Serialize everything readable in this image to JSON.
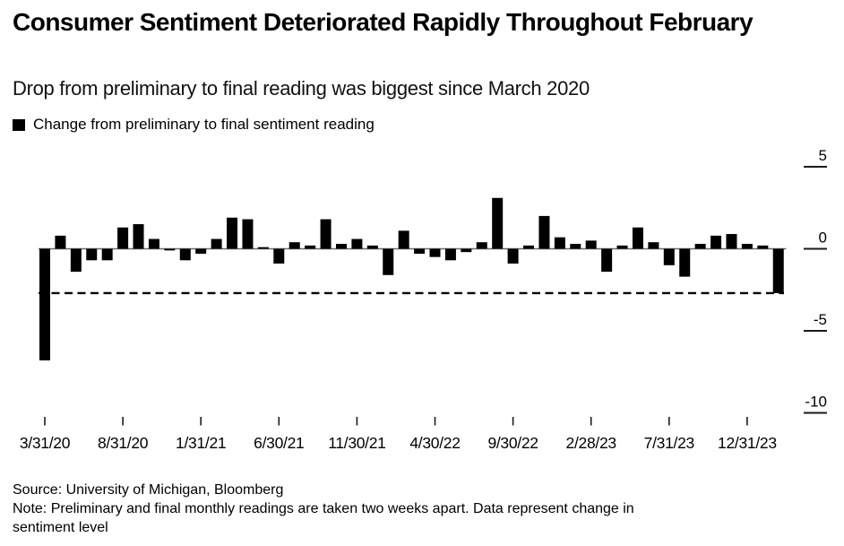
{
  "header": {
    "title": "Consumer Sentiment Deteriorated Rapidly Throughout February",
    "subtitle": "Drop from preliminary to final reading was biggest since March 2020"
  },
  "legend": {
    "label": "Change from preliminary to final sentiment reading"
  },
  "chart_data": {
    "type": "bar",
    "title": "Consumer Sentiment Deteriorated Rapidly Throughout February",
    "series_name": "Change from preliminary to final sentiment reading",
    "x": [
      "3/31/20",
      "4/30/20",
      "5/31/20",
      "6/30/20",
      "7/31/20",
      "8/31/20",
      "9/30/20",
      "10/31/20",
      "11/30/20",
      "12/31/20",
      "1/31/21",
      "2/28/21",
      "3/31/21",
      "4/30/21",
      "5/31/21",
      "6/30/21",
      "7/31/21",
      "8/31/21",
      "9/30/21",
      "10/31/21",
      "11/30/21",
      "12/31/21",
      "1/31/22",
      "2/28/22",
      "3/31/22",
      "4/30/22",
      "5/31/22",
      "6/30/22",
      "7/31/22",
      "8/31/22",
      "9/30/22",
      "10/31/22",
      "11/30/22",
      "12/31/22",
      "1/31/23",
      "2/28/23",
      "3/31/23",
      "4/30/23",
      "5/31/23",
      "6/30/23",
      "7/31/23",
      "8/31/23",
      "9/30/23",
      "10/31/23",
      "11/30/23",
      "12/31/23",
      "1/31/24",
      "2/29/24"
    ],
    "values": [
      -6.8,
      0.8,
      -1.4,
      -0.7,
      -0.7,
      1.3,
      1.5,
      0.6,
      -0.1,
      -0.7,
      -0.3,
      0.6,
      1.9,
      1.8,
      0.1,
      -0.9,
      0.4,
      0.2,
      1.8,
      0.3,
      0.6,
      0.2,
      -1.6,
      1.1,
      -0.3,
      -0.5,
      -0.7,
      -0.2,
      0.4,
      3.1,
      -0.9,
      0.2,
      2.0,
      0.7,
      0.3,
      0.5,
      -1.4,
      0.2,
      1.3,
      0.4,
      -1.0,
      -1.7,
      0.3,
      0.8,
      0.9,
      0.3,
      0.2,
      -2.7
    ],
    "ylim": [
      -10.7,
      5.5
    ],
    "y_ticks": [
      5,
      0,
      -5,
      -10
    ],
    "x_tick_labels": [
      "3/31/20",
      "8/31/20",
      "1/31/21",
      "6/30/21",
      "11/30/21",
      "4/30/22",
      "9/30/22",
      "2/28/23",
      "7/31/23",
      "12/31/23"
    ],
    "x_tick_step": 5,
    "reference_line": {
      "style": "dashed",
      "value": -2.7
    },
    "bar_color": "#000000",
    "axis_color": "#1a1a1a",
    "zero_line_color": "#6e6e6e",
    "grid": false,
    "legend_position": "top-left",
    "y_axis_side": "right"
  },
  "footer": {
    "source": "Source: University of Michigan, Bloomberg",
    "note": "Note: Preliminary and final monthly readings are taken two weeks apart. Data represent change in sentiment level"
  }
}
